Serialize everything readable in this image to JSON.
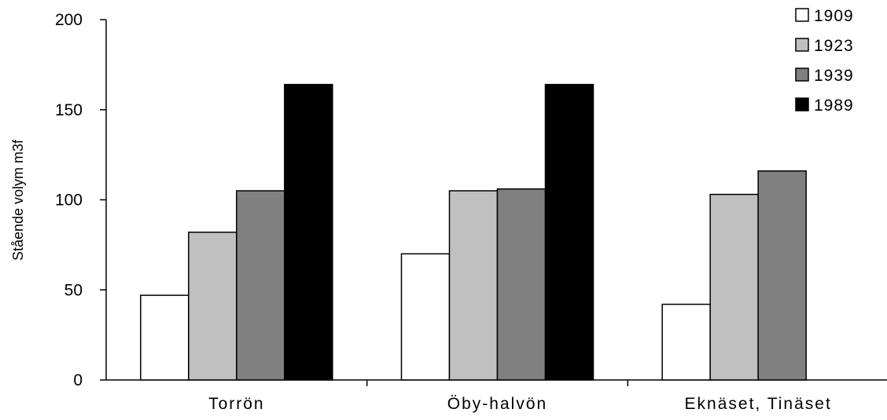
{
  "chart_data": {
    "type": "bar",
    "categories": [
      "Torrön",
      "Öby-halvön",
      "Eknäset, Tinäset"
    ],
    "series": [
      {
        "name": "1909",
        "values": [
          47,
          70,
          42
        ],
        "color": "#ffffff"
      },
      {
        "name": "1923",
        "values": [
          82,
          105,
          103
        ],
        "color": "#c0c0c0"
      },
      {
        "name": "1939",
        "values": [
          105,
          106,
          116
        ],
        "color": "#808080"
      },
      {
        "name": "1989",
        "values": [
          164,
          164,
          null
        ],
        "color": "#000000"
      }
    ],
    "ylabel": "Stående volym m3f",
    "xlabel": "",
    "title": "",
    "ylim": [
      0,
      200
    ],
    "yticks": [
      0,
      50,
      100,
      150,
      200
    ],
    "grid": false,
    "legend_position": "top-right"
  }
}
